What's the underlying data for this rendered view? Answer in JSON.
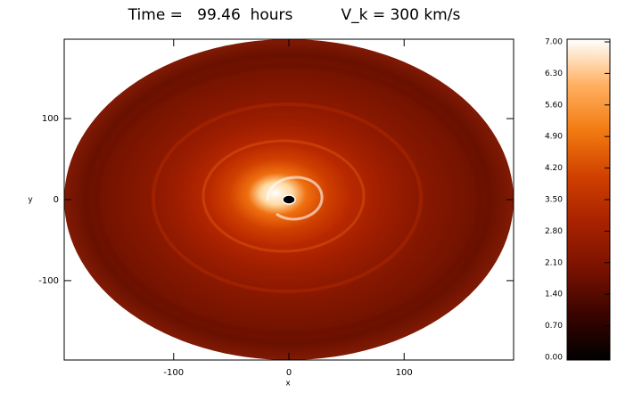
{
  "chart_data": {
    "type": "image",
    "title": "Time =   99.46  hours          V_k = 300 km/s",
    "x_label": "x",
    "y_label": "y",
    "xlim": [
      -195,
      195
    ],
    "ylim": [
      -198,
      198
    ],
    "xticks": [
      -100,
      0,
      100
    ],
    "yticks": [
      -100,
      0,
      100
    ],
    "colorbar": {
      "lim": [
        0,
        7
      ],
      "colormap": [
        "#000000",
        "#3a0400",
        "#7a1200",
        "#a82200",
        "#d04000",
        "#f27a10",
        "#ffb060",
        "#ffffff"
      ],
      "ticks": [
        {
          "value": 0,
          "label": "0.00"
        },
        {
          "value": 0.7,
          "label": "0.70"
        },
        {
          "value": 1.4,
          "label": "1.40"
        },
        {
          "value": 2.1,
          "label": "2.10"
        },
        {
          "value": 2.8,
          "label": "2.80"
        },
        {
          "value": 3.5,
          "label": "3.50"
        },
        {
          "value": 4.2,
          "label": "4.20"
        },
        {
          "value": 4.9,
          "label": "4.90"
        },
        {
          "value": 5.6,
          "label": "5.60"
        },
        {
          "value": 6.3,
          "label": "6.30"
        },
        {
          "value": 7,
          "label": "7.00"
        }
      ]
    }
  }
}
